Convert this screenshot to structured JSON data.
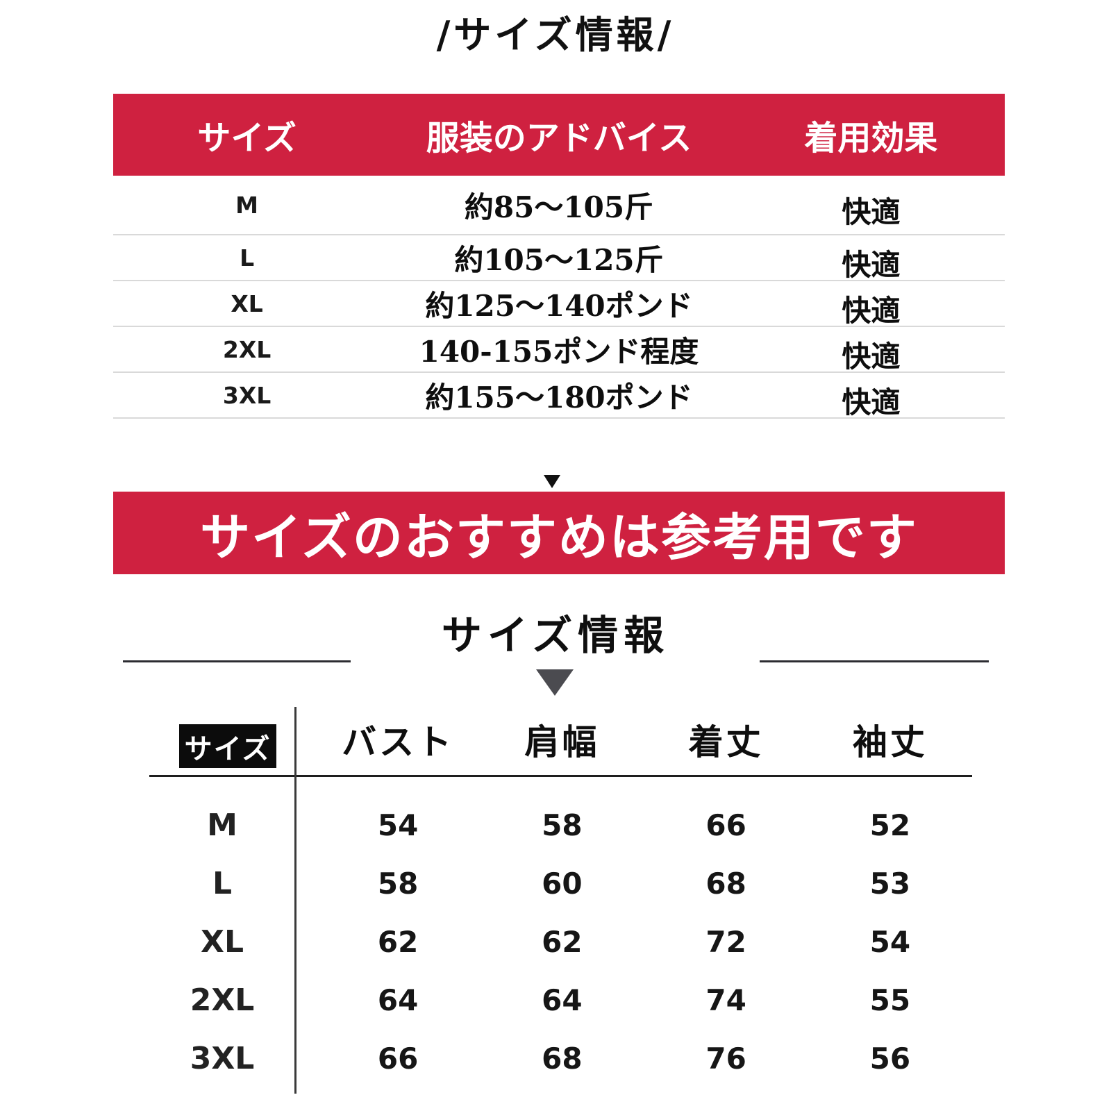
{
  "page": {
    "title": "/サイズ情報/",
    "section2_title": "サイズ情報"
  },
  "colors": {
    "accent_red": "#CF2140",
    "header_text": "#FFFFFF",
    "row_divider": "#D9D9D9",
    "table_line": "#1E1E1E",
    "corner_box_black": "#0C0C0C",
    "arrow_gray": "#4B4B50"
  },
  "size_advice_table": {
    "headers": [
      "サイズ",
      "服装のアドバイス",
      "着用効果"
    ],
    "rows": [
      {
        "size": "M",
        "advice": "約85〜105斤",
        "effect": "快適"
      },
      {
        "size": "L",
        "advice": "約105〜125斤",
        "effect": "快適"
      },
      {
        "size": "XL",
        "advice": "約125〜140ポンド",
        "effect": "快適"
      },
      {
        "size": "2XL",
        "advice": "140-155ポンド程度",
        "effect": "快適"
      },
      {
        "size": "3XL",
        "advice": "約155〜180ポンド",
        "effect": "快適"
      }
    ]
  },
  "notice_banner": {
    "text": "サイズのおすすめは参考用です"
  },
  "measurement_table": {
    "corner_label": "サイズ",
    "headers": [
      "バスト",
      "肩幅",
      "着丈",
      "袖丈"
    ],
    "rows": [
      {
        "size": "M",
        "values": [
          54,
          58,
          66,
          52
        ]
      },
      {
        "size": "L",
        "values": [
          58,
          60,
          68,
          53
        ]
      },
      {
        "size": "XL",
        "values": [
          62,
          62,
          72,
          54
        ]
      },
      {
        "size": "2XL",
        "values": [
          64,
          64,
          74,
          55
        ]
      },
      {
        "size": "3XL",
        "values": [
          66,
          68,
          76,
          56
        ]
      }
    ]
  }
}
